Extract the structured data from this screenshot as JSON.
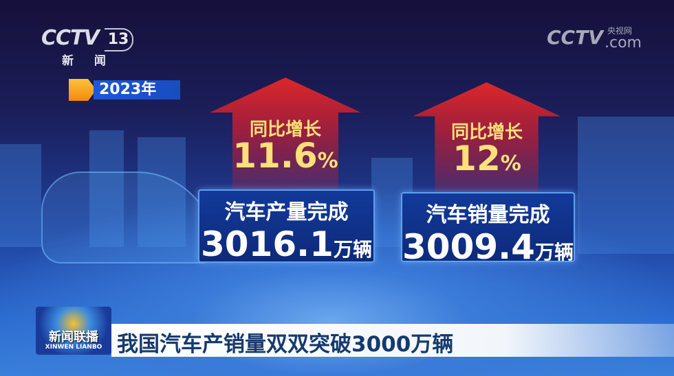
{
  "channel_logo": {
    "brand": "CCTV",
    "channel": "13",
    "subtitle": "新 闻"
  },
  "watermark": {
    "brand": "CCTV",
    "cn": "央视网",
    "domain": ".com"
  },
  "year_tag": "2023年",
  "stats": [
    {
      "growth_label": "同比增长",
      "growth_value": "11.6",
      "growth_unit": "%",
      "title": "汽车产量完成",
      "value": "3016.1",
      "unit": "万辆"
    },
    {
      "growth_label": "同比增长",
      "growth_value": "12",
      "growth_unit": "%",
      "title": "汽车销量完成",
      "value": "3009.4",
      "unit": "万辆"
    }
  ],
  "program_logo": {
    "cn": "新闻联播",
    "en": "XINWEN  LIANBO"
  },
  "headline": "我国汽车产销量双双突破3000万辆",
  "colors": {
    "arrow": "#e02828",
    "highlight": "#ffe07a",
    "box": "#123a9a",
    "headline_text": "#163a6e"
  }
}
